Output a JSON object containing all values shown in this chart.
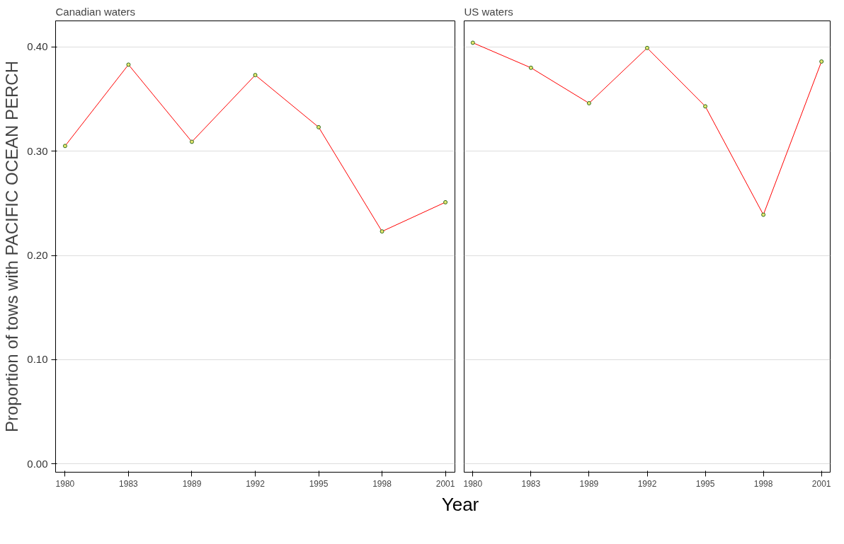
{
  "chart_data": [
    {
      "type": "line",
      "title": "Canadian waters",
      "ylabel": "Proportion of tows with PACIFIC OCEAN PERCH",
      "xlabel": "Year",
      "categories": [
        "1980",
        "1983",
        "1989",
        "1992",
        "1995",
        "1998",
        "2001"
      ],
      "series": [
        {
          "color": "#ff0000",
          "values": [
            0.305,
            0.383,
            0.309,
            0.373,
            0.323,
            0.223,
            0.251
          ]
        }
      ],
      "ylim": [
        -0.008,
        0.425
      ],
      "yticks": [
        {
          "value": 0,
          "label": "0.00"
        },
        {
          "value": 0.1,
          "label": "0.10"
        },
        {
          "value": 0.2,
          "label": "0.20"
        },
        {
          "value": 0.3,
          "label": "0.30"
        },
        {
          "value": 0.4,
          "label": "0.40"
        }
      ],
      "grid": "y",
      "marker": "circle",
      "line_style": "solid"
    },
    {
      "type": "line",
      "title": "US waters",
      "categories": [
        "1980",
        "1983",
        "1989",
        "1992",
        "1995",
        "1998",
        "2001"
      ],
      "series": [
        {
          "color": "#ff0000",
          "values": [
            0.404,
            0.38,
            0.346,
            0.399,
            0.343,
            0.239,
            0.386
          ]
        }
      ],
      "ylim": [
        -0.008,
        0.425
      ],
      "yticks": [
        {
          "value": 0,
          "label": null
        },
        {
          "value": 0.1,
          "label": null
        },
        {
          "value": 0.2,
          "label": null
        },
        {
          "value": 0.3,
          "label": null
        },
        {
          "value": 0.4,
          "label": null
        }
      ],
      "grid": "y",
      "marker": "circle",
      "line_style": "solid",
      "tick_labels": "x"
    }
  ]
}
